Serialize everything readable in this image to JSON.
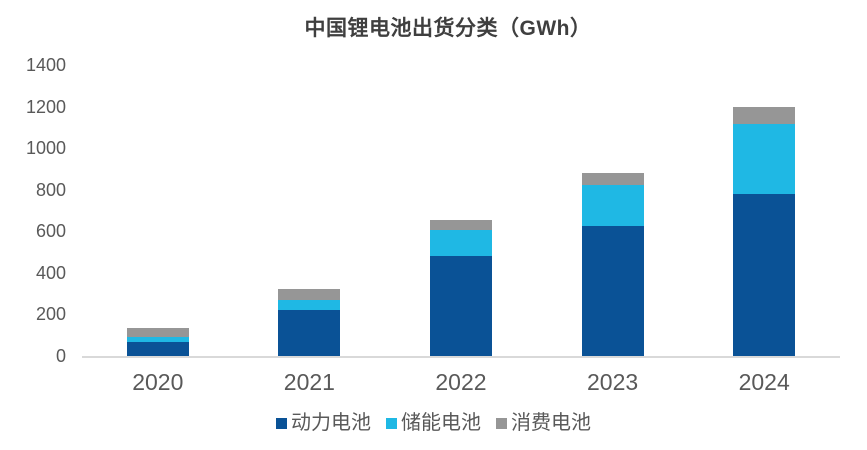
{
  "title": "中国锂电池出货分类（GWh）",
  "chart_data": {
    "type": "bar",
    "stacked": true,
    "title": "中国锂电池出货分类（GWh）",
    "categories": [
      "2020",
      "2021",
      "2022",
      "2023",
      "2024"
    ],
    "series": [
      {
        "name": "动力电池",
        "color": "#0A5296",
        "values": [
          70,
          220,
          480,
          625,
          780
        ]
      },
      {
        "name": "储能电池",
        "color": "#1FB8E4",
        "values": [
          20,
          48,
          125,
          200,
          335
        ]
      },
      {
        "name": "消费电池",
        "color": "#969696",
        "values": [
          47,
          53,
          50,
          55,
          85
        ]
      }
    ],
    "totals": [
      137,
      321,
      655,
      880,
      1200
    ],
    "unit": "GWh",
    "ylim": [
      0,
      1400
    ],
    "yticks": [
      0,
      200,
      400,
      600,
      800,
      1000,
      1200,
      1400
    ],
    "grid": false,
    "legend_position": "bottom"
  },
  "colors": {
    "background": "#FFFFFF",
    "axis_line": "#D9D9D9",
    "tick_label": "#595959",
    "title_text": "#3F3F3F",
    "legend_text": "#595959"
  }
}
